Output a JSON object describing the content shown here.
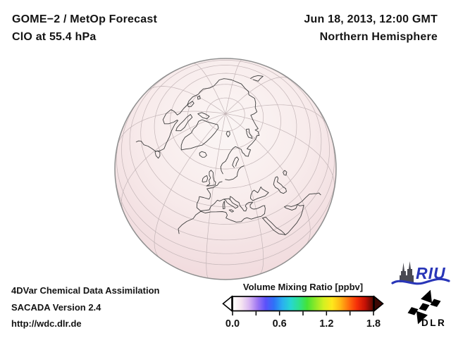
{
  "header": {
    "title_line1": "GOME−2 / MetOp Forecast",
    "title_line2": "ClO at 55.4 hPa",
    "datetime": "Jun 18, 2013, 12:00 GMT",
    "region": "Northern Hemisphere"
  },
  "globe": {
    "projection": "orthographic",
    "view": "Northern Hemisphere centered near 60N 10E",
    "field": "ClO volume mixing ratio, near-zero (pale pink shading)",
    "tint_stops": [
      "#fbf6f5",
      "#f8ecec",
      "#f3e0e2",
      "#efd6d9"
    ],
    "coastline_color": "#3e3e3e",
    "graticule_color": "#c3b5b7",
    "rim_color": "#8f8f8f"
  },
  "colorbar": {
    "title": "Volume Mixing Ratio [ppbv]",
    "units": "ppbv",
    "min": 0.0,
    "max": 1.8,
    "tick_labels": [
      "0.0",
      "0.6",
      "1.2",
      "1.8"
    ],
    "tick_values": [
      0.0,
      0.6,
      1.2,
      1.8
    ],
    "minor_tick_values": [
      0.0,
      0.3,
      0.6,
      0.9,
      1.2,
      1.5,
      1.8
    ],
    "gradient": [
      "#ffffff",
      "#f6e7f1",
      "#d9b8f2",
      "#a078f2",
      "#5b51fa",
      "#2e72f7",
      "#2aaff0",
      "#27d6d2",
      "#2ee18f",
      "#45e336",
      "#8fe928",
      "#d4f021",
      "#ffe71c",
      "#ffb714",
      "#ff700d",
      "#f62f08",
      "#c51105",
      "#520a04"
    ],
    "under_arrow_color": "#ffffff",
    "over_arrow_color": "#3c0703"
  },
  "footer": {
    "line1": "4DVar Chemical Data Assimilation",
    "line2": "SACADA Version 2.4",
    "line3": "http://wdc.dlr.de"
  },
  "logos": {
    "riu": "RIU",
    "riu_color": "#2936b8",
    "riu_cathedral_color": "#4a4a52",
    "dlr": "DLR",
    "dlr_color": "#000000"
  }
}
